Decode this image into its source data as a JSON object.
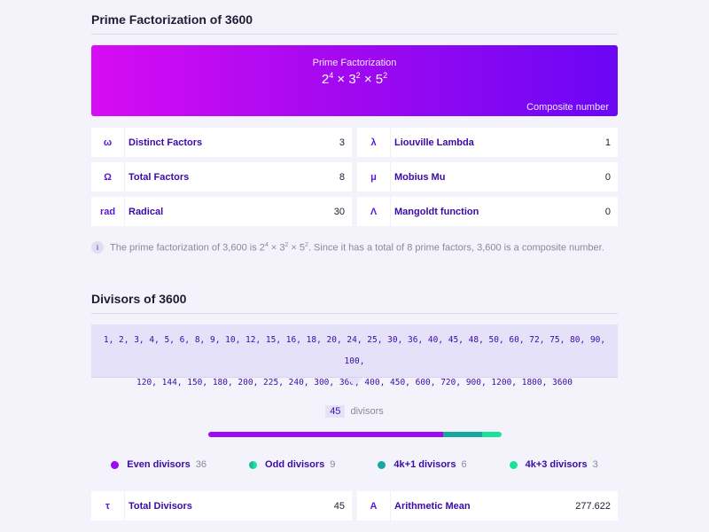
{
  "factorization": {
    "title": "Prime Factorization of 3600",
    "hero_label": "Prime Factorization",
    "formula": {
      "b1": "2",
      "e1": "4",
      "b2": "3",
      "e2": "2",
      "b3": "5",
      "e3": "2"
    },
    "hero_note": "Composite number",
    "colors": {
      "gradient_start": "#d70cf2",
      "gradient_end": "#6a06f5"
    },
    "cards": [
      {
        "symbol": "ω",
        "label": "Distinct Factors",
        "value": "3"
      },
      {
        "symbol": "λ",
        "label": "Liouville Lambda",
        "value": "1"
      },
      {
        "symbol": "Ω",
        "label": "Total Factors",
        "value": "8"
      },
      {
        "symbol": "μ",
        "label": "Mobius Mu",
        "value": "0"
      },
      {
        "symbol": "rad",
        "label": "Radical",
        "value": "30"
      },
      {
        "symbol": "Λ",
        "label": "Mangoldt function",
        "value": "0"
      }
    ],
    "info": {
      "icon": "info-icon",
      "icon_glyph": "i",
      "prefix": "The prime factorization of 3,600 is ",
      "suffix": ". Since it has a total of 8 prime factors, 3,600 is a composite number."
    }
  },
  "divisors": {
    "title": "Divisors of 3600",
    "line1": "1, 2, 3, 4, 5, 6, 8, 9, 10, 12, 15, 16, 18, 20, 24, 25, 30, 36, 40, 45, 48, 50, 60, 72, 75, 80, 90, 100,",
    "line2": "120, 144, 150, 180, 200, 225, 240, 300, 360, 400, 450, 600, 720, 900, 1200, 1800, 3600",
    "count": "45",
    "count_label": "divisors",
    "breakdown": [
      {
        "name": "Even divisors",
        "count": "36",
        "value": 36,
        "color": "#9b0af0"
      },
      {
        "name": "Odd divisors",
        "count": "9",
        "value": 9,
        "color": "#1fb69a"
      },
      {
        "name": "4k+1 divisors",
        "count": "6",
        "value": 6,
        "color": "#16a79f"
      },
      {
        "name": "4k+3 divisors",
        "count": "3",
        "value": 3,
        "color": "#19e39a"
      }
    ],
    "cards": [
      {
        "symbol": "τ",
        "label": "Total Divisors",
        "value": "45"
      },
      {
        "symbol": "A",
        "label": "Arithmetic Mean",
        "value": "277.622"
      }
    ]
  }
}
